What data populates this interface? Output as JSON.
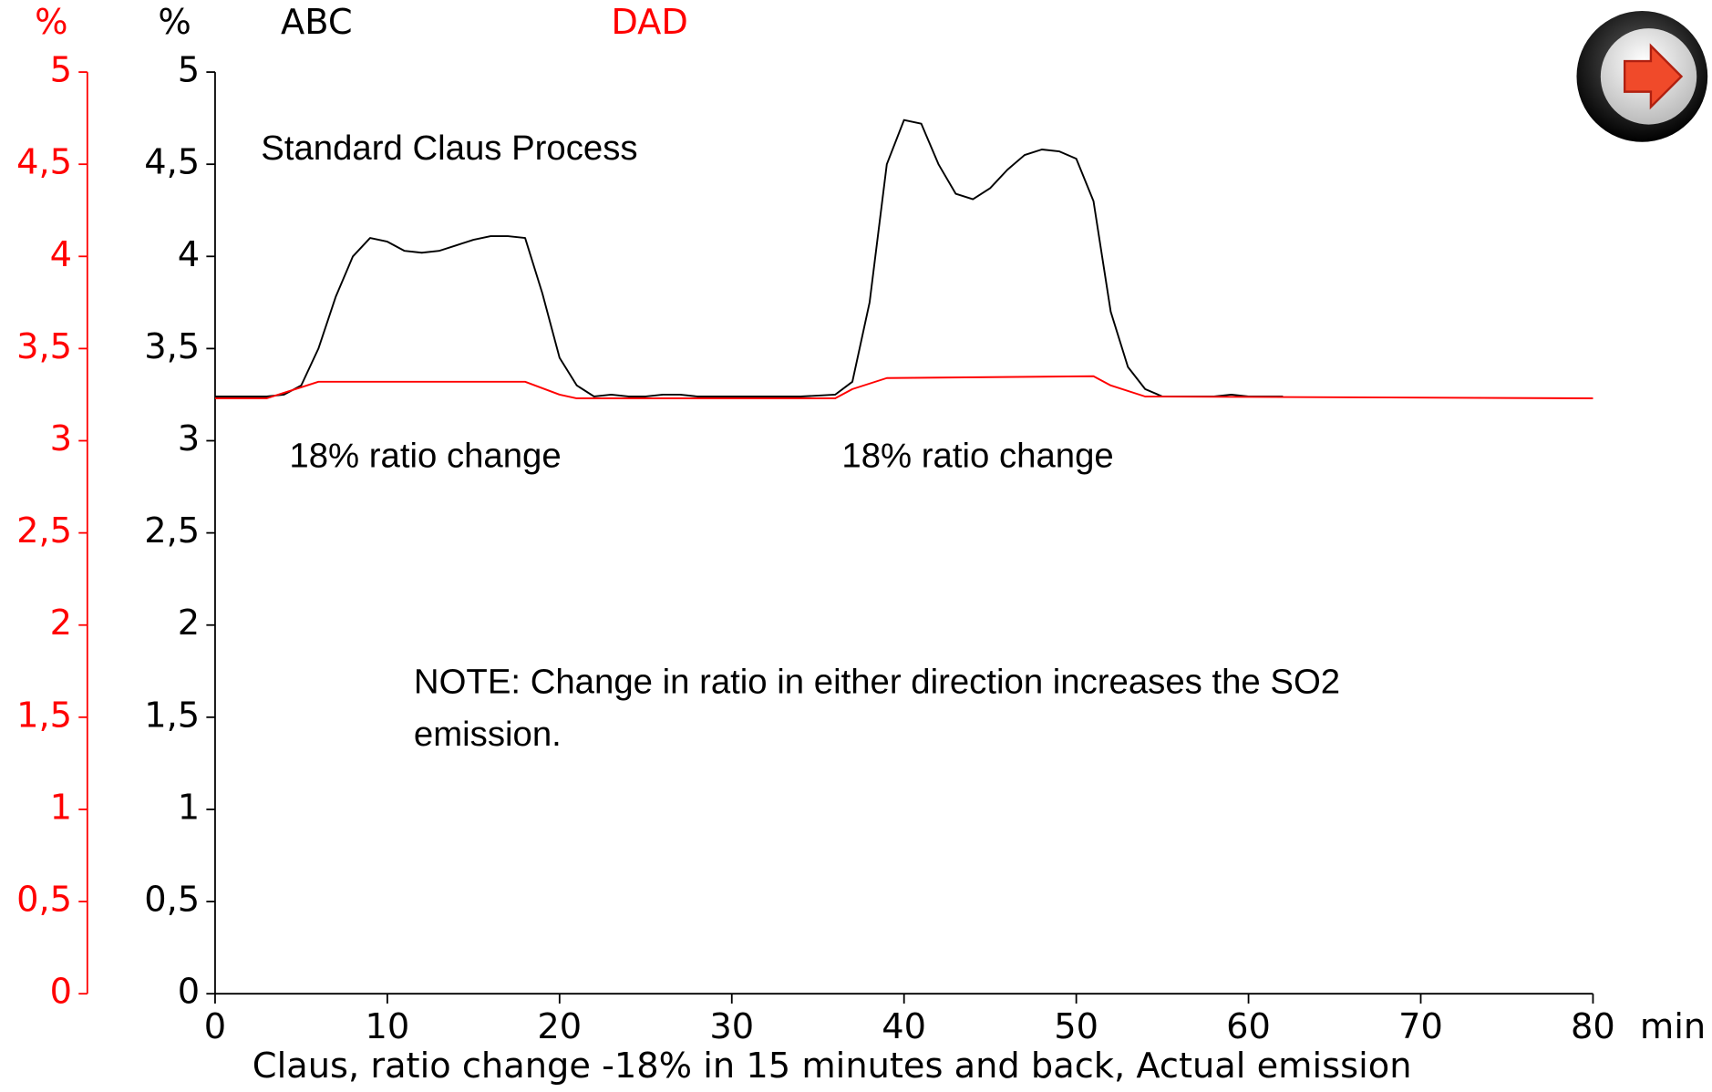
{
  "chart_data": {
    "type": "line",
    "x_label": "Claus, ratio change -18% in 15 minutes and back, Actual emission",
    "x_unit": "min",
    "y_label": "%",
    "y2_label": "%",
    "xlim": [
      0,
      80
    ],
    "xticks": [
      0,
      10,
      20,
      30,
      40,
      50,
      60,
      70,
      80
    ],
    "ylim": [
      0,
      5
    ],
    "yticks": [
      0,
      {
        "value": 0.5,
        "label": "0,5"
      },
      1,
      {
        "value": 1.5,
        "label": "1,5"
      },
      2,
      {
        "value": 2.5,
        "label": "2,5"
      },
      3,
      {
        "value": 3.5,
        "label": "3,5"
      },
      4,
      {
        "value": 4.5,
        "label": "4,5"
      },
      5
    ],
    "y2lim": [
      0,
      5
    ],
    "y2ticks": [
      0,
      {
        "value": 0.5,
        "label": "0,5"
      },
      1,
      {
        "value": 1.5,
        "label": "1,5"
      },
      2,
      {
        "value": 2.5,
        "label": "2,5"
      },
      3,
      {
        "value": 3.5,
        "label": "3,5"
      },
      4,
      {
        "value": 4.5,
        "label": "4,5"
      },
      5
    ],
    "annotations": [
      "Standard Claus Process",
      "18% ratio change",
      "18% ratio change",
      "NOTE: Change in ratio in either direction increases the SO2 emission."
    ],
    "series": [
      {
        "name": "ABC",
        "color": "#000000",
        "x": [
          0,
          2,
          3,
          4,
          5,
          6,
          7,
          8,
          9,
          10,
          11,
          12,
          13,
          14,
          15,
          16,
          17,
          18,
          19,
          20,
          21,
          22,
          23,
          24,
          25,
          26,
          27,
          28,
          30,
          32,
          34,
          36,
          37,
          38,
          39,
          40,
          41,
          42,
          43,
          44,
          45,
          46,
          47,
          48,
          49,
          50,
          51,
          52,
          53,
          54,
          55,
          56,
          58,
          59,
          60,
          62
        ],
        "values": [
          3.24,
          3.24,
          3.24,
          3.25,
          3.3,
          3.5,
          3.78,
          4.0,
          4.1,
          4.08,
          4.03,
          4.02,
          4.03,
          4.06,
          4.09,
          4.11,
          4.11,
          4.1,
          3.8,
          3.45,
          3.3,
          3.24,
          3.25,
          3.24,
          3.24,
          3.25,
          3.25,
          3.24,
          3.24,
          3.24,
          3.24,
          3.25,
          3.32,
          3.75,
          4.5,
          4.74,
          4.72,
          4.5,
          4.34,
          4.31,
          4.37,
          4.47,
          4.55,
          4.58,
          4.57,
          4.53,
          4.3,
          3.7,
          3.4,
          3.28,
          3.24,
          3.24,
          3.24,
          3.25,
          3.24,
          3.24
        ]
      },
      {
        "name": "DAD",
        "color": "#ff0000",
        "axis": "y2",
        "x": [
          0,
          3,
          4,
          6,
          18,
          20,
          21,
          36,
          37,
          39,
          51,
          52,
          54,
          80
        ],
        "values": [
          3.23,
          3.23,
          3.26,
          3.32,
          3.32,
          3.25,
          3.23,
          3.23,
          3.28,
          3.34,
          3.35,
          3.3,
          3.24,
          3.23
        ]
      }
    ]
  }
}
